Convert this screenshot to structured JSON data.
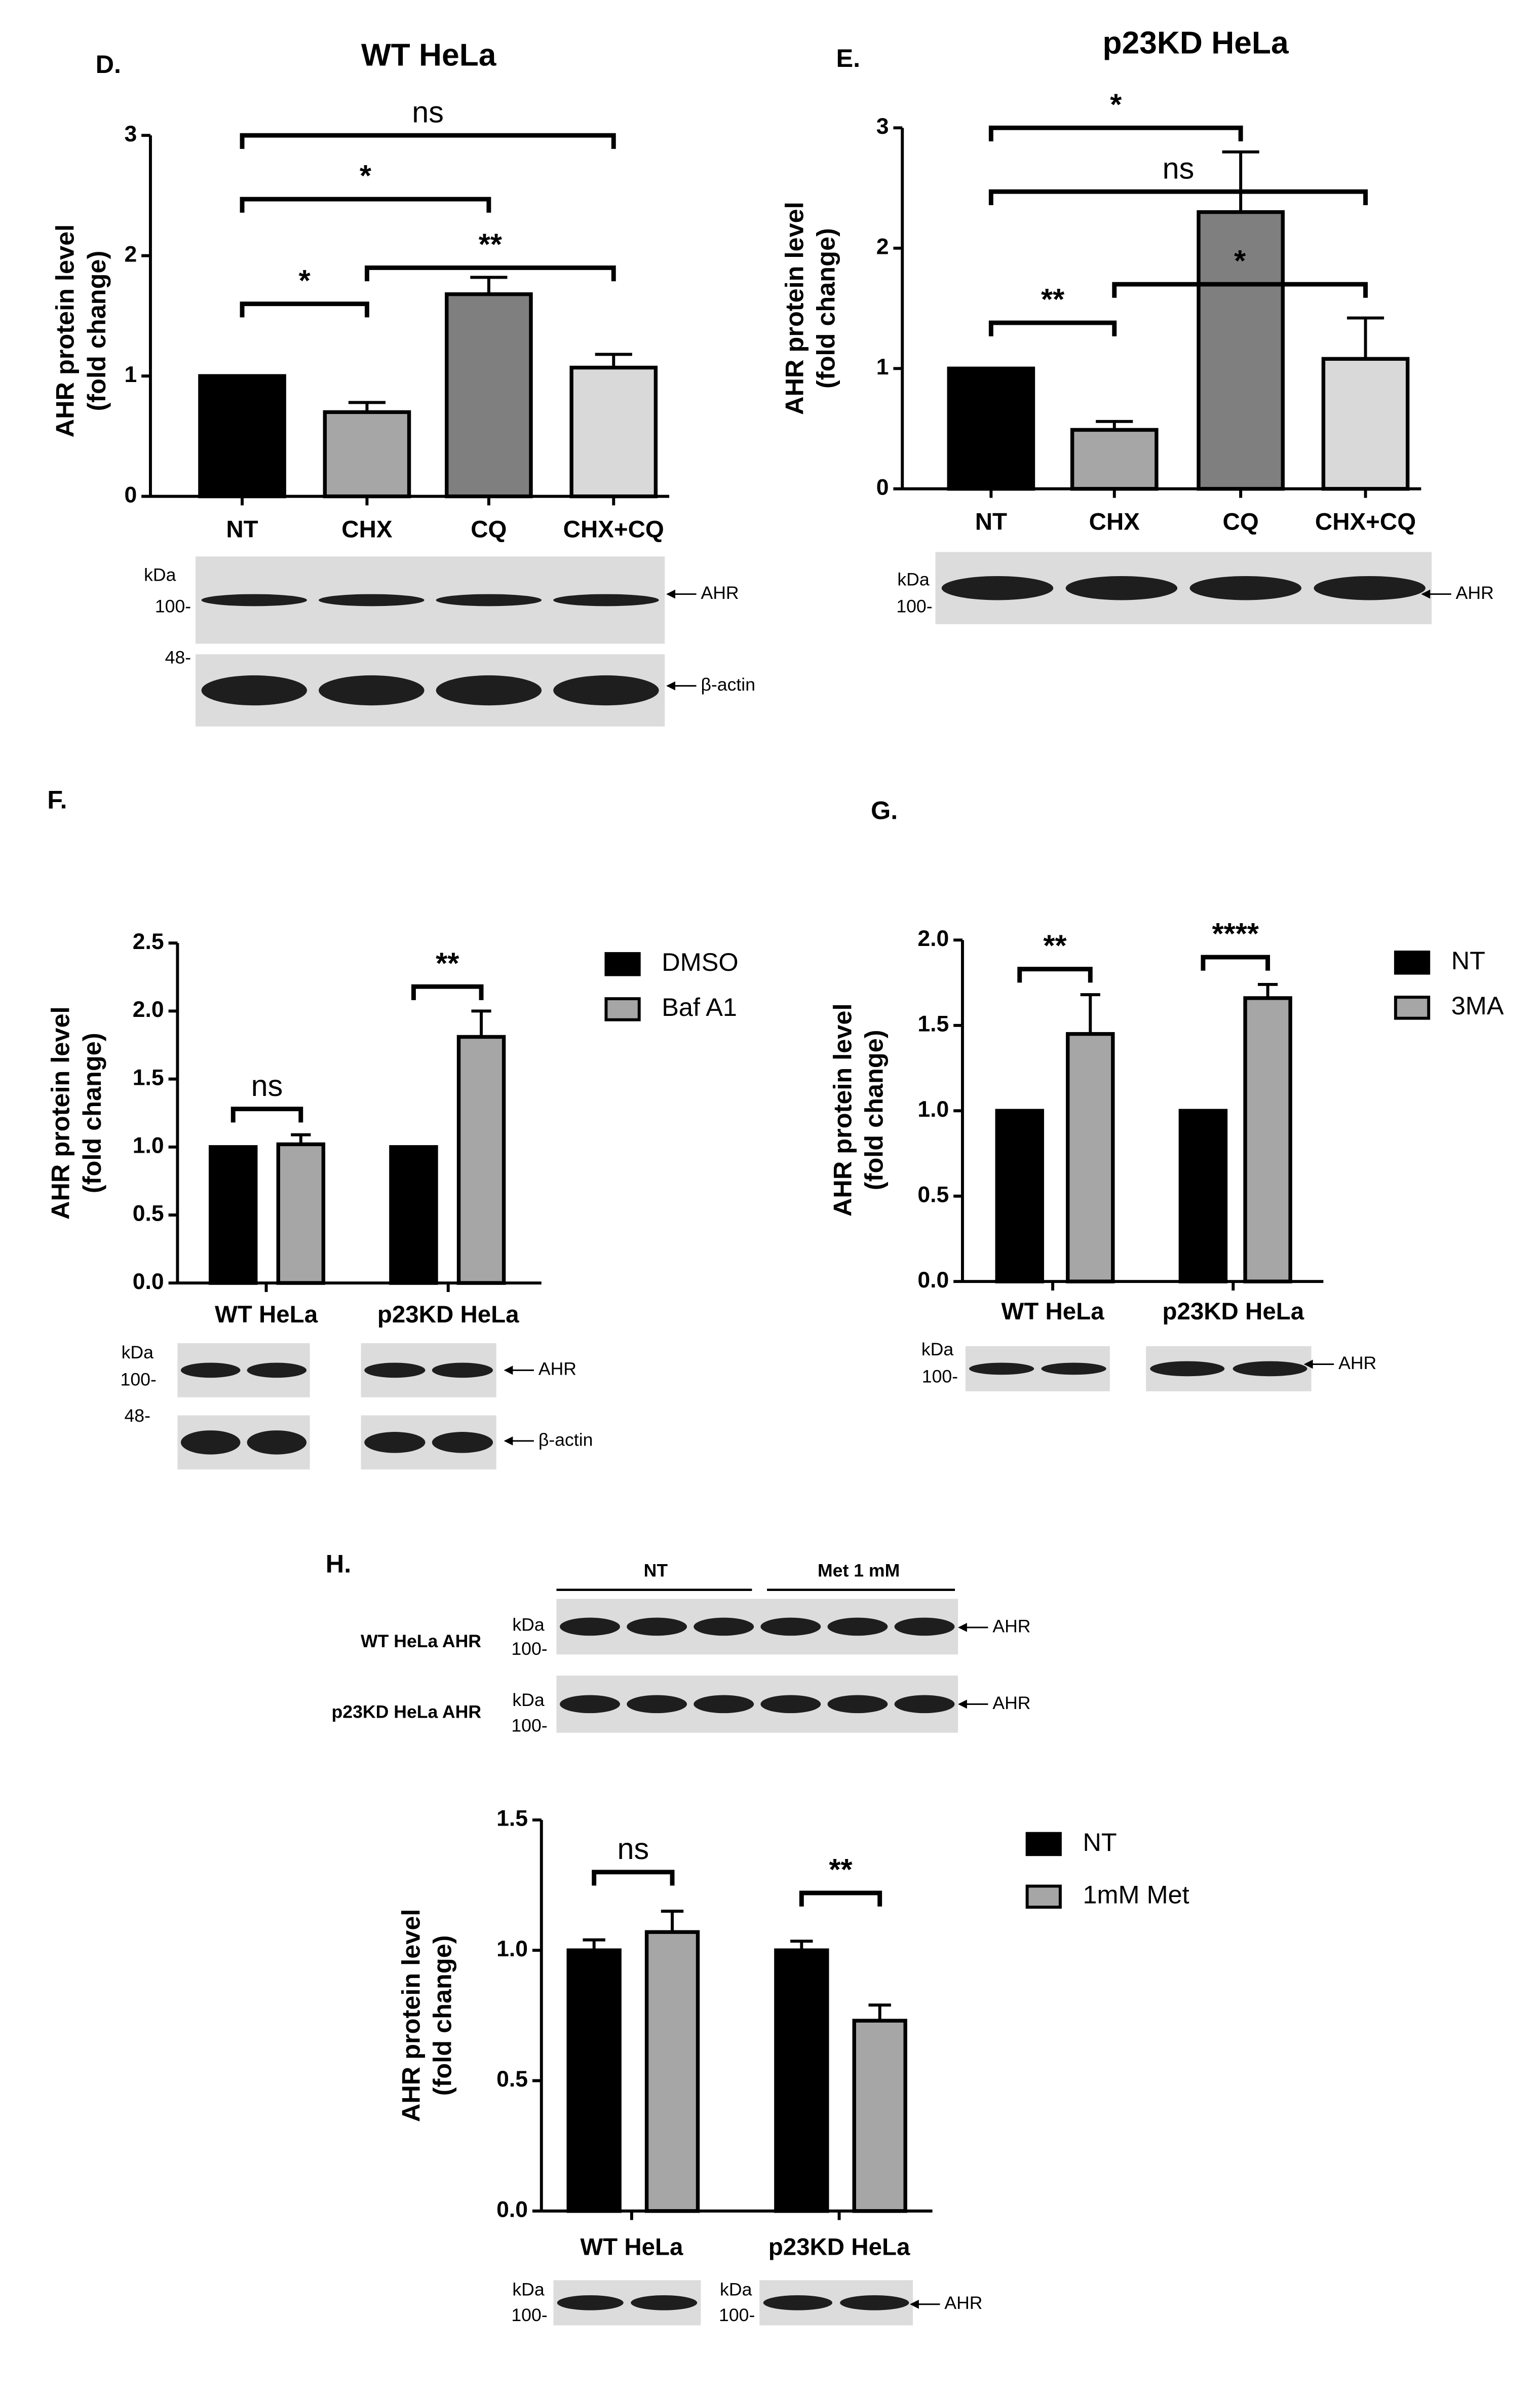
{
  "chart_data": [
    {
      "type": "bar",
      "panel": "D.",
      "title": "WT HeLa",
      "ylabel": [
        "AHR protein level",
        "(fold change)"
      ],
      "categories": [
        "NT",
        "CHX",
        "CQ",
        "CHX+CQ"
      ],
      "values": [
        1.0,
        0.7,
        1.68,
        1.07
      ],
      "errors": [
        null,
        0.08,
        0.14,
        0.11
      ],
      "colors": [
        "#000000",
        "#a6a6a6",
        "#7f7f7f",
        "#d9d9d9"
      ],
      "ylim": [
        0,
        3
      ],
      "yticks": [
        0,
        1,
        2,
        3
      ],
      "significance": [
        {
          "from": 0,
          "to": 3,
          "label": "ns"
        },
        {
          "from": 0,
          "to": 2,
          "label": "*"
        },
        {
          "from": 1,
          "to": 3,
          "label": "**"
        },
        {
          "from": 0,
          "to": 1,
          "label": "*"
        }
      ],
      "blot": {
        "labels": [
          "kDa",
          "100-",
          "48-",
          "AHR",
          "β-actin"
        ]
      }
    },
    {
      "type": "bar",
      "panel": "E.",
      "title": "p23KD HeLa",
      "ylabel": [
        "AHR protein level",
        "(fold change)"
      ],
      "categories": [
        "NT",
        "CHX",
        "CQ",
        "CHX+CQ"
      ],
      "values": [
        1.0,
        0.49,
        2.3,
        1.08
      ],
      "errors": [
        null,
        0.07,
        0.5,
        0.34
      ],
      "colors": [
        "#000000",
        "#a6a6a6",
        "#7f7f7f",
        "#d9d9d9"
      ],
      "ylim": [
        0,
        3
      ],
      "yticks": [
        0,
        1,
        2,
        3
      ],
      "significance": [
        {
          "from": 0,
          "to": 2,
          "label": "*"
        },
        {
          "from": 0,
          "to": 3,
          "label": "ns"
        },
        {
          "from": 1,
          "to": 3,
          "label": "*"
        },
        {
          "from": 0,
          "to": 1,
          "label": "**"
        }
      ],
      "blot": {
        "labels": [
          "kDa",
          "100-",
          "AHR"
        ]
      }
    },
    {
      "type": "grouped_bar",
      "panel": "F.",
      "ylabel": [
        "AHR protein level",
        "(fold change)"
      ],
      "categories": [
        "WT HeLa",
        "p23KD HeLa"
      ],
      "series": [
        {
          "name": "DMSO",
          "color": "#000000",
          "values": [
            1.0,
            1.0
          ]
        },
        {
          "name": "Baf A1",
          "color": "#a6a6a6",
          "values": [
            1.02,
            1.81
          ],
          "errors": [
            0.07,
            0.19
          ]
        }
      ],
      "ylim": [
        0,
        2.5
      ],
      "yticks": [
        {
          "value": 0,
          "label": "0.0"
        },
        0.5,
        {
          "value": 1,
          "label": "1.0"
        },
        1.5,
        {
          "value": 2,
          "label": "2.0"
        },
        2.5
      ],
      "significance": [
        {
          "group": 0,
          "label": "ns"
        },
        {
          "group": 1,
          "label": "**"
        }
      ],
      "blot": {
        "labels": [
          "kDa",
          "100-",
          "48-",
          "AHR",
          "β-actin"
        ]
      }
    },
    {
      "type": "grouped_bar",
      "panel": "G.",
      "ylabel": [
        "AHR protein level",
        "(fold change)"
      ],
      "categories": [
        "WT HeLa",
        "p23KD HeLa"
      ],
      "series": [
        {
          "name": "NT",
          "color": "#000000",
          "values": [
            1.0,
            1.0
          ]
        },
        {
          "name": "3MA",
          "color": "#a6a6a6",
          "values": [
            1.45,
            1.66
          ],
          "errors": [
            0.23,
            0.08
          ]
        }
      ],
      "ylim": [
        0,
        2
      ],
      "yticks": [
        {
          "value": 0,
          "label": "0.0"
        },
        0.5,
        {
          "value": 1,
          "label": "1.0"
        },
        1.5,
        {
          "value": 2,
          "label": "2.0"
        }
      ],
      "significance": [
        {
          "group": 0,
          "label": "**"
        },
        {
          "group": 1,
          "label": "****"
        }
      ],
      "blot": {
        "labels": [
          "kDa",
          "100-",
          "AHR"
        ]
      }
    },
    {
      "type": "grouped_bar",
      "panel": "H.",
      "ylabel": [
        "AHR protein level",
        "(fold change)"
      ],
      "categories": [
        "WT HeLa",
        "p23KD HeLa"
      ],
      "series": [
        {
          "name": "NT",
          "color": "#000000",
          "values": [
            1.0,
            1.0
          ],
          "errors": [
            0.04,
            0.035
          ]
        },
        {
          "name": "1mM Met",
          "color": "#a6a6a6",
          "values": [
            1.07,
            0.73
          ],
          "errors": [
            0.08,
            0.06
          ]
        }
      ],
      "ylim": [
        0,
        1.5
      ],
      "yticks": [
        {
          "value": 0,
          "label": "0.0"
        },
        0.5,
        {
          "value": 1,
          "label": "1.0"
        },
        1.5
      ],
      "significance": [
        {
          "group": 0,
          "label": "ns"
        },
        {
          "group": 1,
          "label": "**"
        }
      ],
      "blot_top": {
        "headers": [
          "NT",
          "Met 1 mM"
        ],
        "rows": [
          "WT HeLa AHR",
          "p23KD HeLa AHR"
        ],
        "labels": [
          "kDa",
          "100-",
          "AHR",
          "kDa",
          "100-",
          "AHR"
        ]
      },
      "blot": {
        "labels": [
          "kDa",
          "100-",
          "kDa",
          "100-",
          "AHR"
        ]
      }
    }
  ]
}
